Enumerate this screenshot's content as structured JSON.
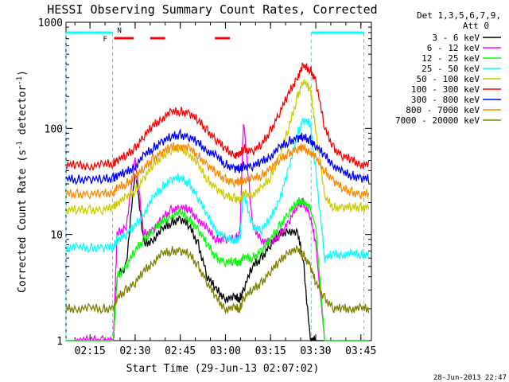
{
  "chart_data": {
    "type": "line",
    "title": "HESSI Observing Summary Count Rates, Corrected",
    "xlabel": "Start Time (29-Jun-13 02:07:02)",
    "ylabel_main": "Corrected Count Rate (s",
    "ylabel_sup1": "-1",
    "ylabel_mid": " detector",
    "ylabel_sup2": "-1",
    "ylabel_end": ")",
    "y_scale": "log",
    "ylim": [
      1,
      1000
    ],
    "xlim": [
      "02:07:02",
      "03:48:30"
    ],
    "x_ticks": [
      "02:15",
      "02:30",
      "02:45",
      "03:00",
      "03:15",
      "03:30",
      "03:45"
    ],
    "y_ticks": [
      "1",
      "10",
      "100",
      "1000"
    ],
    "detectors_label": "Det 1,3,5,6,7,9,",
    "attenuator_label": "Att 0",
    "timestamp": "28-Jun-2013 22:47",
    "flags": {
      "night_intervals": [
        [
          "02:07:02",
          "02:22:30"
        ],
        [
          "03:28:30",
          "03:46:00"
        ]
      ],
      "saa_marker": "N",
      "flare_marker": "F",
      "flare_intervals": [
        [
          "02:23:00",
          "02:29:30"
        ],
        [
          "02:35:00",
          "02:40:00"
        ],
        [
          "02:56:30",
          "03:01:30"
        ]
      ],
      "night_color": "#00ffff",
      "flare_color": "#ff0000"
    },
    "x_hours": [
      2.12,
      2.18,
      2.25,
      2.32,
      2.38,
      2.4,
      2.45,
      2.5,
      2.55,
      2.6,
      2.65,
      2.7,
      2.75,
      2.8,
      2.85,
      2.9,
      2.95,
      3.0,
      3.05,
      3.08,
      3.1,
      3.15,
      3.2,
      3.25,
      3.3,
      3.35,
      3.4,
      3.43,
      3.47,
      3.5,
      3.55,
      3.6,
      3.65,
      3.7,
      3.75,
      3.8
    ],
    "series": [
      {
        "name": "3 - 6 keV",
        "color": "#000000",
        "x_range": [
          2.38,
          3.5
        ],
        "values": [
          1,
          1,
          1,
          1,
          1,
          4,
          5,
          40,
          8,
          9,
          11,
          13,
          14,
          12,
          8,
          4,
          3,
          2.5,
          2.5,
          2.5,
          3,
          5,
          6,
          8,
          10,
          11,
          10,
          6,
          1,
          1,
          1,
          1,
          1,
          1,
          1,
          1
        ]
      },
      {
        "name": "6 - 12 keV",
        "color": "#ff00ff",
        "x_range": [
          2.18,
          3.5
        ],
        "values": [
          1,
          1,
          1,
          1,
          1,
          10,
          12,
          50,
          10,
          11,
          14,
          17,
          18,
          17,
          14,
          11,
          9,
          9,
          9,
          10,
          120,
          12,
          9,
          8,
          10,
          13,
          19,
          20,
          15,
          8,
          1,
          1,
          1,
          1,
          1,
          1
        ]
      },
      {
        "name": "12 - 25 keV",
        "color": "#00ff00",
        "x_range": [
          2.38,
          3.47
        ],
        "values": [
          1,
          1,
          1,
          1,
          1,
          4,
          5,
          7,
          9,
          11,
          13,
          15,
          16,
          14,
          11,
          8,
          6,
          5.5,
          5.5,
          5.5,
          6,
          6,
          7,
          9,
          12,
          16,
          20,
          21,
          17,
          12,
          1,
          1,
          1,
          1,
          1,
          1
        ]
      },
      {
        "name": "25 - 50 keV",
        "color": "#00ffff",
        "values": [
          7.5,
          7.5,
          7.5,
          7.5,
          7.5,
          9,
          10,
          12,
          16,
          22,
          28,
          33,
          34,
          30,
          22,
          15,
          11,
          9,
          9,
          9,
          25,
          12,
          11,
          14,
          22,
          40,
          90,
          120,
          110,
          40,
          6,
          6.5,
          6.5,
          6.5,
          6.5,
          6.5
        ]
      },
      {
        "name": "50 - 100 keV",
        "color": "#cccc00",
        "values": [
          17,
          17,
          17,
          17,
          18,
          20,
          22,
          26,
          34,
          45,
          55,
          62,
          65,
          58,
          44,
          33,
          27,
          23,
          22,
          21,
          24,
          24,
          27,
          35,
          55,
          100,
          200,
          280,
          230,
          100,
          22,
          18,
          18,
          18,
          18,
          18
        ]
      },
      {
        "name": "100 - 300 keV",
        "color": "#ff0000",
        "values": [
          45,
          45,
          44,
          45,
          47,
          50,
          55,
          65,
          85,
          105,
          125,
          140,
          145,
          138,
          118,
          95,
          78,
          63,
          57,
          55,
          65,
          60,
          70,
          95,
          140,
          210,
          310,
          380,
          360,
          280,
          100,
          65,
          55,
          50,
          46,
          45
        ]
      },
      {
        "name": "300 - 800 keV",
        "color": "#0000ff",
        "values": [
          33,
          33,
          33,
          33,
          34,
          36,
          38,
          44,
          55,
          65,
          75,
          83,
          87,
          83,
          72,
          62,
          54,
          46,
          42,
          41,
          44,
          44,
          48,
          55,
          65,
          75,
          81,
          82,
          77,
          68,
          55,
          45,
          38,
          36,
          34,
          33
        ]
      },
      {
        "name": "800 - 7000 keV",
        "color": "#ff8800",
        "values": [
          24,
          24,
          24,
          24,
          25,
          27,
          30,
          35,
          42,
          52,
          60,
          66,
          68,
          64,
          55,
          45,
          38,
          33,
          31,
          31,
          33,
          33,
          36,
          42,
          50,
          58,
          64,
          65,
          60,
          52,
          40,
          32,
          27,
          25,
          24,
          24
        ]
      },
      {
        "name": "7000 - 20000 keV",
        "color": "#808000",
        "values": [
          2,
          2,
          2,
          2,
          2,
          2.5,
          3,
          3.5,
          4.5,
          5.5,
          6.5,
          7,
          7,
          6.5,
          5,
          3.5,
          2.5,
          2,
          2,
          2,
          2.5,
          3,
          3.5,
          4.5,
          5.5,
          7,
          7,
          6.5,
          5,
          3.5,
          2.5,
          2,
          2,
          2,
          2,
          2
        ]
      }
    ]
  }
}
